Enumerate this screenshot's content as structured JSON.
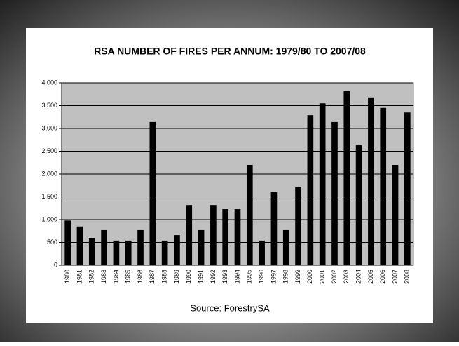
{
  "chart_data": {
    "type": "bar",
    "title": "RSA NUMBER OF FIRES PER ANNUM: 1979/80 TO 2007/08",
    "categories": [
      "1980",
      "1981",
      "1982",
      "1983",
      "1984",
      "1985",
      "1986",
      "1987",
      "1988",
      "1989",
      "1990",
      "1991",
      "1992",
      "1993",
      "1994",
      "1995",
      "1996",
      "1997",
      "1998",
      "1999",
      "2000",
      "2001",
      "2002",
      "2003",
      "2004",
      "2005",
      "2006",
      "2007",
      "2008"
    ],
    "values": [
      980,
      850,
      600,
      770,
      540,
      540,
      770,
      3140,
      540,
      660,
      1320,
      770,
      1320,
      1230,
      1230,
      2200,
      540,
      1600,
      770,
      1710,
      3290,
      3550,
      3140,
      3820,
      2630,
      3680,
      3450,
      2200,
      3350
    ],
    "color": "#000000",
    "ylim": [
      0,
      4000
    ],
    "yticks": [
      0,
      500,
      {
        "value": 1000,
        "label": "1,000"
      },
      {
        "value": 1500,
        "label": "1,500"
      },
      {
        "value": 2000,
        "label": "2,000"
      },
      {
        "value": 2500,
        "label": "2,500"
      },
      {
        "value": 3000,
        "label": "3,000"
      },
      {
        "value": 3500,
        "label": "3,500"
      },
      {
        "value": 4000,
        "label": "4,000"
      }
    ],
    "grid": true,
    "source": "Source: ForestrySA"
  }
}
